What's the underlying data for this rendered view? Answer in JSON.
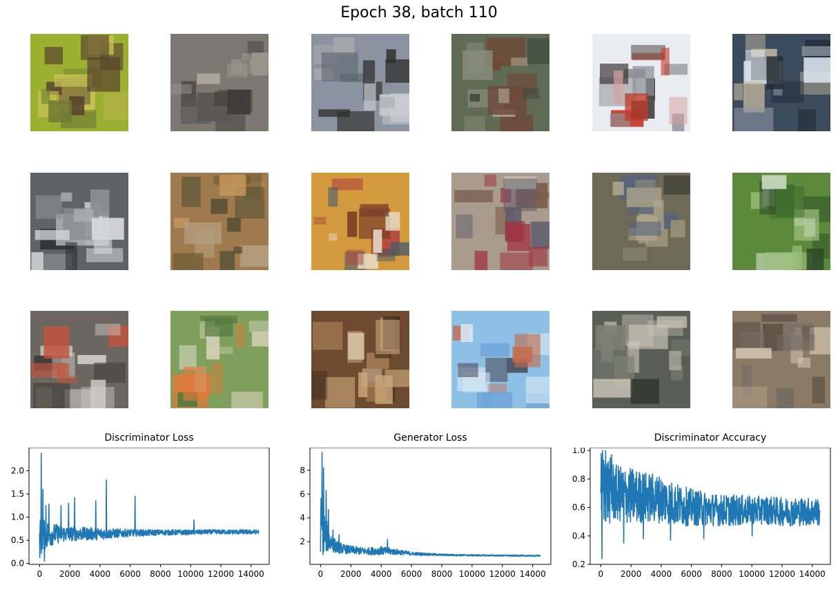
{
  "title": "Epoch 38, batch 110",
  "samples": [
    {
      "colors": [
        "#9bb030",
        "#b8b24a",
        "#6f7a35",
        "#d2c65a",
        "#58432f"
      ]
    },
    {
      "colors": [
        "#7c7770",
        "#5b5752",
        "#9a948b",
        "#3e3b38",
        "#b1aaa0"
      ]
    },
    {
      "colors": [
        "#8b93a1",
        "#5c636e",
        "#c9ccd1",
        "#2f2f2d",
        "#a5a8ab"
      ]
    },
    {
      "colors": [
        "#5f6b55",
        "#8c8e7d",
        "#3c4a3e",
        "#b4ae9a",
        "#6e4a3a"
      ]
    },
    {
      "colors": [
        "#e9ecf0",
        "#c23b2b",
        "#3b3232",
        "#d9a0a0",
        "#8f9098"
      ]
    },
    {
      "colors": [
        "#3b4a5c",
        "#dbe4ee",
        "#1f2730",
        "#8c96a3",
        "#c6b8a1"
      ]
    },
    {
      "colors": [
        "#5f6266",
        "#aeb2b6",
        "#2b2e33",
        "#8a8f93",
        "#d6d8d9"
      ]
    },
    {
      "colors": [
        "#9e7a4e",
        "#6b5a35",
        "#c2945c",
        "#4c4a32",
        "#b59f7e"
      ]
    },
    {
      "colors": [
        "#d39b3d",
        "#7a3f28",
        "#e9dfcf",
        "#b0453f",
        "#4a5c6c"
      ]
    },
    {
      "colors": [
        "#a99b8e",
        "#7a5b4b",
        "#c8c0b4",
        "#a03540",
        "#5d5a6c"
      ]
    },
    {
      "colors": [
        "#6e6a57",
        "#9c9479",
        "#3a3b33",
        "#b0a58c",
        "#56647a"
      ]
    },
    {
      "colors": [
        "#5d8a3a",
        "#3b6a2a",
        "#9dc07d",
        "#2d4a28",
        "#c8d8c0"
      ]
    },
    {
      "colors": [
        "#6b6660",
        "#d0ccc6",
        "#3c3a3a",
        "#9e8d7c",
        "#c4533e"
      ]
    },
    {
      "colors": [
        "#7fa05c",
        "#e07a3a",
        "#b9c4a0",
        "#557a3f",
        "#d8d0b8"
      ]
    },
    {
      "colors": [
        "#6e4b2f",
        "#d8c7a6",
        "#3c2a1e",
        "#a27a52",
        "#c9a57a"
      ]
    },
    {
      "colors": [
        "#8ec0e6",
        "#c46a4a",
        "#d9e8f4",
        "#4a4a5a",
        "#6fa5d8"
      ]
    },
    {
      "colors": [
        "#5a5e57",
        "#a9a79a",
        "#2e302c",
        "#7d7f73",
        "#c9c4b6"
      ]
    },
    {
      "colors": [
        "#8a7a66",
        "#b8a68f",
        "#5c4f44",
        "#d1c3ae",
        "#736a63"
      ]
    }
  ],
  "chart_data": [
    {
      "type": "line",
      "title": "Discriminator Loss",
      "xlabel": "",
      "ylabel": "",
      "xlim": [
        -700,
        15200
      ],
      "ylim": [
        -0.02,
        2.5
      ],
      "xticks": [
        0,
        2000,
        4000,
        6000,
        8000,
        10000,
        12000,
        14000
      ],
      "xtick_labels": [
        "0",
        "2000",
        "4000",
        "6000",
        "8000",
        "10000",
        "12000",
        "14000"
      ],
      "yticks": [
        0.0,
        0.5,
        1.0,
        1.5,
        2.0
      ],
      "ytick_labels": [
        "0.0",
        "0.5",
        "1.0",
        "1.5",
        "2.0"
      ],
      "x": [
        0,
        200,
        500,
        1000,
        1500,
        2000,
        3000,
        4000,
        5000,
        6000,
        7000,
        8000,
        9000,
        10000,
        11000,
        12000,
        13000,
        14000,
        14500
      ],
      "mean": [
        0.55,
        0.6,
        0.62,
        0.64,
        0.64,
        0.64,
        0.64,
        0.64,
        0.65,
        0.66,
        0.66,
        0.67,
        0.67,
        0.67,
        0.68,
        0.68,
        0.68,
        0.68,
        0.68
      ],
      "band": [
        0.45,
        0.35,
        0.3,
        0.22,
        0.18,
        0.16,
        0.14,
        0.13,
        0.1,
        0.08,
        0.07,
        0.06,
        0.06,
        0.05,
        0.05,
        0.05,
        0.05,
        0.05,
        0.05
      ],
      "spikes": [
        [
          90,
          2.38
        ],
        [
          200,
          1.6
        ],
        [
          300,
          0.05
        ],
        [
          400,
          1.25
        ],
        [
          600,
          1.28
        ],
        [
          1400,
          1.25
        ],
        [
          1900,
          1.3
        ],
        [
          2300,
          1.42
        ],
        [
          3700,
          1.35
        ],
        [
          4400,
          1.8
        ],
        [
          6300,
          1.45
        ],
        [
          10200,
          0.94
        ]
      ],
      "color": "#1f77b4"
    },
    {
      "type": "line",
      "title": "Generator Loss",
      "xlabel": "",
      "ylabel": "",
      "xlim": [
        -700,
        15200
      ],
      "ylim": [
        0.1,
        9.9
      ],
      "xticks": [
        0,
        2000,
        4000,
        6000,
        8000,
        10000,
        12000,
        14000
      ],
      "xtick_labels": [
        "0",
        "2000",
        "4000",
        "6000",
        "8000",
        "10000",
        "12000",
        "14000"
      ],
      "yticks": [
        2,
        4,
        6,
        8
      ],
      "ytick_labels": [
        "2",
        "4",
        "6",
        "8"
      ],
      "x": [
        0,
        200,
        500,
        1000,
        1500,
        2000,
        3000,
        4000,
        5000,
        6000,
        7000,
        8000,
        9000,
        10000,
        11000,
        12000,
        13000,
        14000,
        14500
      ],
      "mean": [
        3.5,
        3.0,
        2.2,
        1.6,
        1.4,
        1.3,
        1.2,
        1.25,
        1.15,
        1.0,
        0.95,
        0.9,
        0.88,
        0.86,
        0.85,
        0.84,
        0.83,
        0.82,
        0.82
      ],
      "band": [
        2.5,
        2.2,
        1.0,
        0.55,
        0.4,
        0.35,
        0.3,
        0.35,
        0.25,
        0.15,
        0.1,
        0.08,
        0.07,
        0.07,
        0.06,
        0.06,
        0.06,
        0.06,
        0.06
      ],
      "spikes": [
        [
          80,
          9.5
        ],
        [
          180,
          8.2
        ],
        [
          350,
          6.3
        ],
        [
          500,
          4.7
        ],
        [
          800,
          3.0
        ],
        [
          1200,
          2.6
        ],
        [
          4400,
          2.2
        ]
      ],
      "color": "#1f77b4"
    },
    {
      "type": "line",
      "title": "Discriminator Accuracy",
      "xlabel": "",
      "ylabel": "",
      "xlim": [
        -700,
        15200
      ],
      "ylim": [
        0.2,
        1.02
      ],
      "xticks": [
        0,
        2000,
        4000,
        6000,
        8000,
        10000,
        12000,
        14000
      ],
      "xtick_labels": [
        "0",
        "2000",
        "4000",
        "6000",
        "8000",
        "10000",
        "12000",
        "14000"
      ],
      "yticks": [
        0.2,
        0.4,
        0.6,
        0.8,
        1.0
      ],
      "ytick_labels": [
        "0.2",
        "0.4",
        "0.6",
        "0.8",
        "1.0"
      ],
      "x": [
        0,
        500,
        1000,
        2000,
        3000,
        4000,
        5000,
        6000,
        7000,
        8000,
        9000,
        10000,
        11000,
        12000,
        13000,
        14000,
        14500
      ],
      "mean": [
        0.75,
        0.72,
        0.7,
        0.68,
        0.67,
        0.66,
        0.62,
        0.6,
        0.59,
        0.58,
        0.58,
        0.58,
        0.58,
        0.57,
        0.57,
        0.57,
        0.57
      ],
      "band": [
        0.25,
        0.25,
        0.2,
        0.2,
        0.18,
        0.17,
        0.15,
        0.13,
        0.12,
        0.11,
        0.11,
        0.1,
        0.1,
        0.1,
        0.1,
        0.1,
        0.1
      ],
      "spikes": [
        [
          60,
          0.24
        ],
        [
          100,
          1.0
        ],
        [
          300,
          1.0
        ],
        [
          700,
          0.97
        ],
        [
          1500,
          0.35
        ],
        [
          2800,
          0.38
        ],
        [
          4600,
          0.37
        ],
        [
          6800,
          0.38
        ],
        [
          10000,
          0.4
        ]
      ],
      "color": "#1f77b4"
    }
  ]
}
